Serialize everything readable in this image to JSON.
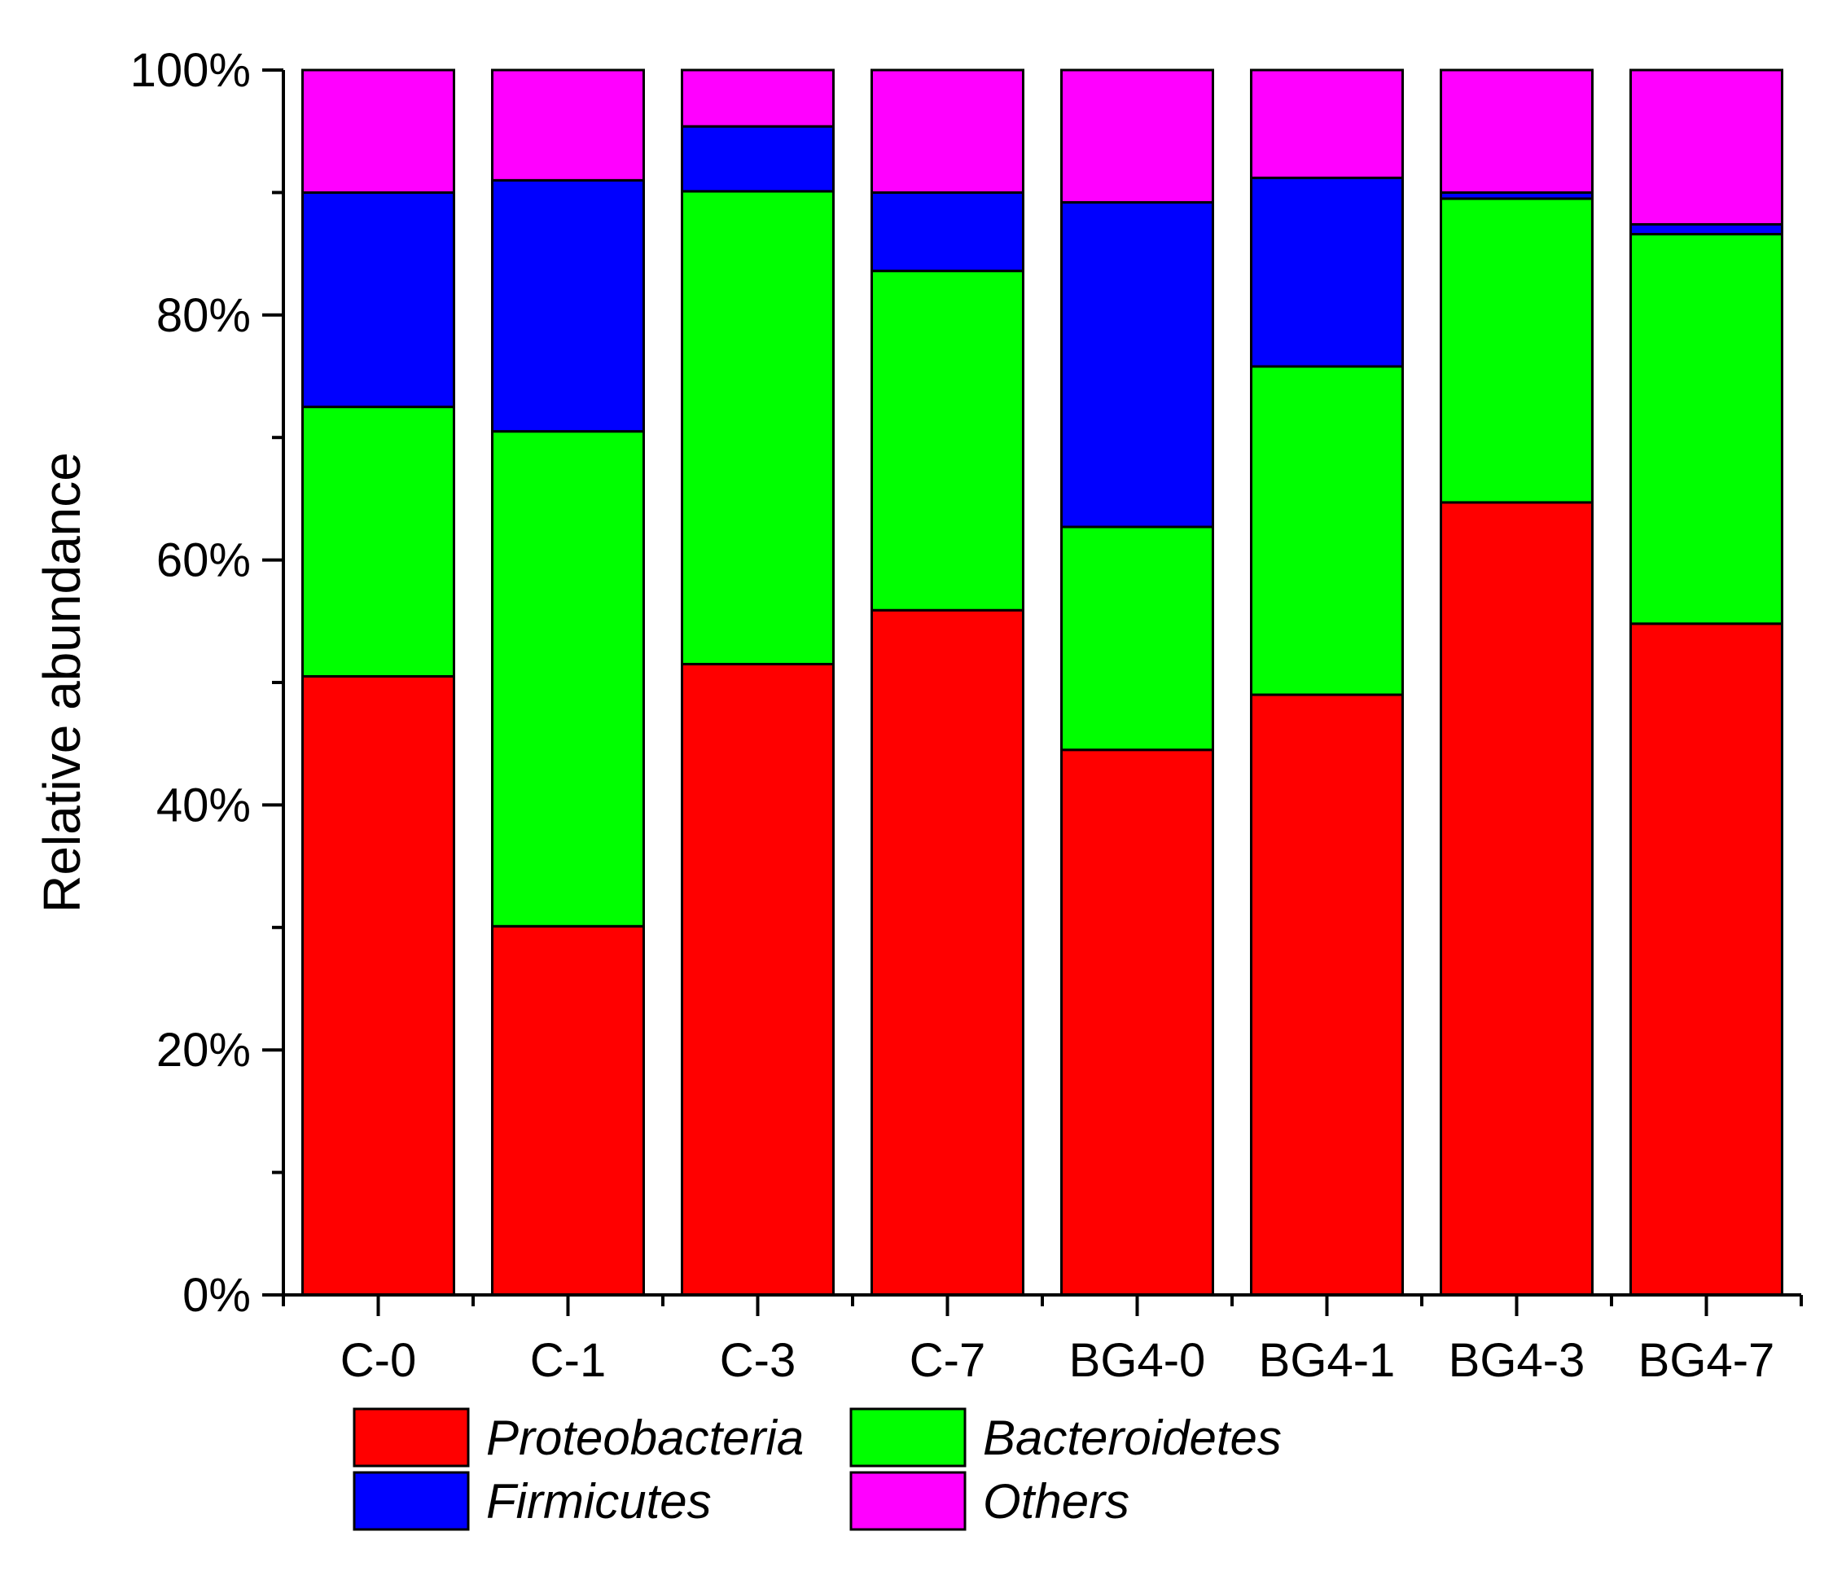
{
  "chart_data": {
    "type": "bar",
    "stacked": true,
    "percent": true,
    "title": "",
    "xlabel": "",
    "ylabel": "Relative abundance",
    "ylim": [
      0,
      100
    ],
    "yticks": [
      "0%",
      "20%",
      "40%",
      "60%",
      "80%",
      "100%"
    ],
    "categories": [
      "C-0",
      "C-1",
      "C-3",
      "C-7",
      "BG4-0",
      "BG4-1",
      "BG4-3",
      "BG4-7"
    ],
    "series": [
      {
        "name": "Proteobacteria",
        "color": "#ff0000",
        "values": [
          50.5,
          30.1,
          51.5,
          55.9,
          44.5,
          49.0,
          64.7,
          54.8
        ]
      },
      {
        "name": "Bacteroidetes",
        "color": "#00ff00",
        "values": [
          22.0,
          40.4,
          38.6,
          27.7,
          18.2,
          26.8,
          24.8,
          31.8
        ]
      },
      {
        "name": "Firmicutes",
        "color": "#0000ff",
        "values": [
          17.5,
          20.5,
          5.3,
          6.4,
          26.5,
          15.4,
          0.5,
          0.8
        ]
      },
      {
        "name": "Others",
        "color": "#ff00ff",
        "values": [
          10.0,
          9.0,
          4.6,
          10.0,
          10.8,
          8.8,
          10.0,
          12.6
        ]
      }
    ],
    "legend": {
      "position": "bottom",
      "columns": 2,
      "order": [
        "Proteobacteria",
        "Bacteroidetes",
        "Firmicutes",
        "Others"
      ]
    }
  }
}
